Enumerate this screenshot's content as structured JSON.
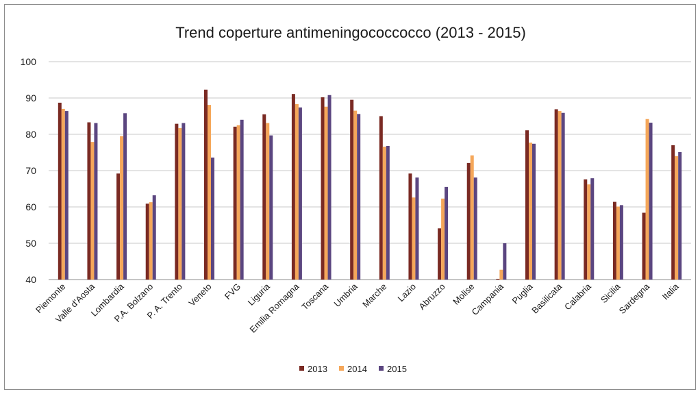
{
  "chart_data": {
    "type": "bar",
    "title": "Trend coperture antimeningococcocco (2013 - 2015)",
    "xlabel": "",
    "ylabel": "",
    "ylim": [
      40,
      100
    ],
    "yticks": [
      40,
      50,
      60,
      70,
      80,
      90,
      100
    ],
    "grid": "horizontal",
    "legend_position": "bottom",
    "categories": [
      "Piemonte",
      "Valle d'Aosta",
      "Lombardia",
      "P.A. Bolzano",
      "P. A. Trento",
      "Veneto",
      "FVG",
      "Liguria",
      "Emilia Romagna",
      "Toscana",
      "Umbria",
      "Marche",
      "Lazio",
      "Abruzzo",
      "Molise",
      "Campania",
      "Puglia",
      "Basilicata",
      "Calabria",
      "Sicilia",
      "Sardegna",
      "Italia"
    ],
    "series": [
      {
        "name": "2013",
        "color": "#7a2a23",
        "values": [
          88.7,
          83.3,
          69.2,
          60.9,
          82.9,
          92.3,
          82.1,
          85.5,
          91.1,
          90.2,
          89.5,
          85.0,
          69.2,
          54.1,
          72.1,
          40.2,
          81.1,
          86.9,
          67.6,
          61.4,
          58.4,
          77.0
        ]
      },
      {
        "name": "2014",
        "color": "#f5a75a",
        "values": [
          87.0,
          77.9,
          79.5,
          61.3,
          81.7,
          88.1,
          82.5,
          83.1,
          88.3,
          87.6,
          86.5,
          76.6,
          62.6,
          62.3,
          74.2,
          42.7,
          77.7,
          86.4,
          66.2,
          60.1,
          84.2,
          74.0
        ]
      },
      {
        "name": "2015",
        "color": "#5b4680",
        "values": [
          86.4,
          83.1,
          85.8,
          63.2,
          83.1,
          73.6,
          84.0,
          79.7,
          87.4,
          90.8,
          85.6,
          76.8,
          68.1,
          65.5,
          68.1,
          50.0,
          77.4,
          85.9,
          67.9,
          60.5,
          83.2,
          75.1
        ]
      }
    ]
  }
}
